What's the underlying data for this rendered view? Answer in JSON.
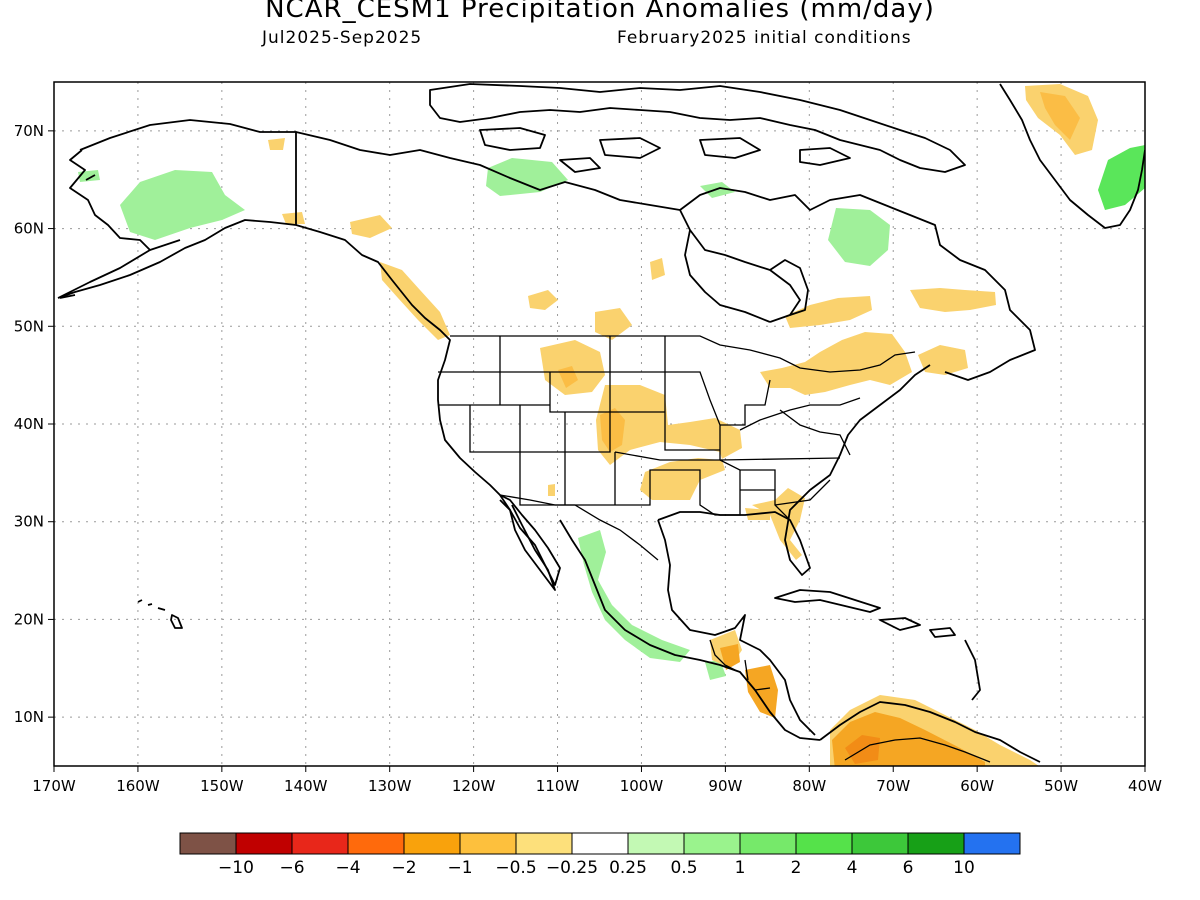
{
  "title": "NCAR_CESM1 Precipitation Anomalies (mm/day)",
  "subtitle_left": "Jul2025-Sep2025",
  "subtitle_right": "February2025 initial conditions",
  "map": {
    "lon_range": [
      -170,
      -40
    ],
    "lat_range": [
      5,
      75
    ],
    "lon_tick_values": [
      -170,
      -160,
      -150,
      -140,
      -130,
      -120,
      -110,
      -100,
      -90,
      -80,
      -70,
      -60,
      -50,
      -40
    ],
    "lon_tick_labels": [
      "170W",
      "160W",
      "150W",
      "140W",
      "130W",
      "120W",
      "110W",
      "100W",
      "90W",
      "80W",
      "70W",
      "60W",
      "50W",
      "40W"
    ],
    "lat_tick_values": [
      10,
      20,
      30,
      40,
      50,
      60,
      70
    ],
    "lat_tick_labels": [
      "10N",
      "20N",
      "30N",
      "40N",
      "50N",
      "60N",
      "70N"
    ],
    "gridlines": "dotted",
    "anomaly_regions": [
      {
        "name": "western-alaska",
        "category": "0.5 to 1",
        "color": "#a0f09a"
      },
      {
        "name": "northwest-territories",
        "category": "0.5 to 1",
        "color": "#a0f09a"
      },
      {
        "name": "quebec-labrador",
        "category": "0.5 to 1",
        "color": "#a0f09a"
      },
      {
        "name": "east-greenland",
        "category": "1 to 4",
        "color": "#5ae65a"
      },
      {
        "name": "western-mexico",
        "category": "0.5 to 1",
        "color": "#a0f09a"
      },
      {
        "name": "central-plains",
        "category": "-1 to -0.5",
        "color": "#fad26e"
      },
      {
        "name": "great-lakes-northeast",
        "category": "-1 to -0.5",
        "color": "#fad26e"
      },
      {
        "name": "british-columbia-coast",
        "category": "-1 to -0.5",
        "color": "#fad26e"
      },
      {
        "name": "central-america",
        "category": "-2 to -1",
        "color": "#f5a623"
      },
      {
        "name": "northern-south-america",
        "category": "-2 to -1",
        "color": "#f5a623"
      },
      {
        "name": "west-greenland",
        "category": "-1 to -0.5",
        "color": "#fad26e"
      }
    ]
  },
  "colorbar": {
    "colors": [
      "#7e5246",
      "#c00000",
      "#e8271a",
      "#ff6a0c",
      "#f9a20c",
      "#fdc03d",
      "#fde07b",
      "#ffffff",
      "#c3f9b4",
      "#9af38d",
      "#76e96a",
      "#55e24a",
      "#3dc83a",
      "#17a017",
      "#2472f0"
    ],
    "labels": [
      "-10",
      "-6",
      "-4",
      "-2",
      "-1",
      "-0.5",
      "-0.25",
      "0.25",
      "0.5",
      "1",
      "2",
      "4",
      "6",
      "10"
    ]
  }
}
